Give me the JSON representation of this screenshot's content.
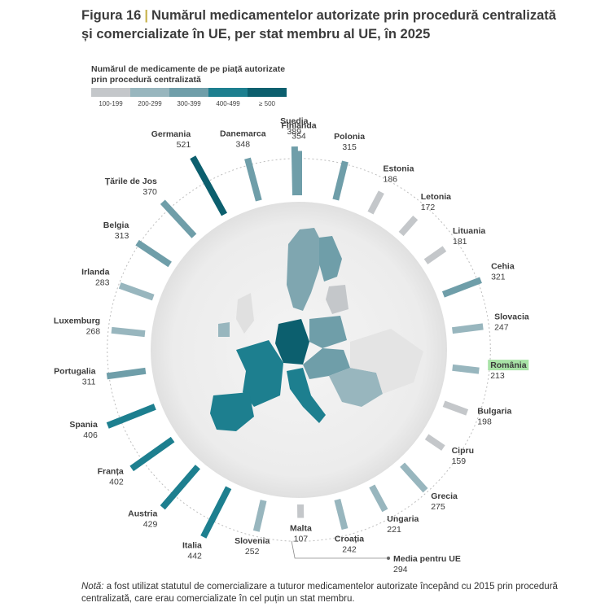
{
  "header": {
    "figure_label": "Figura 16",
    "separator": "|",
    "title_line1": "Numărul medicamentelor autorizate prin procedură centralizată",
    "title_line2": "și comercializate în UE, per stat membru al UE, în 2025"
  },
  "legend": {
    "title_line1": "Numărul de medicamente de pe piață autorizate",
    "title_line2": "prin procedură centralizată",
    "items": [
      {
        "label": "100-199",
        "color": "#c4c7ca"
      },
      {
        "label": "200-299",
        "color": "#98b6be"
      },
      {
        "label": "300-399",
        "color": "#6f9ea9"
      },
      {
        "label": "400-499",
        "color": "#1d7f8f"
      },
      {
        "label": "≥ 500",
        "color": "#0c5f6e"
      }
    ]
  },
  "chart_data": {
    "type": "radial-bar",
    "unit": "Numărul de medicamente de pe piață autorizate prin procedură centralizată",
    "year": 2025,
    "highlight": "România",
    "average": {
      "label": "Media pentru UE",
      "value": 294
    },
    "categories": [
      "Finlanda",
      "Polonia",
      "Estonia",
      "Letonia",
      "Lituania",
      "Cehia",
      "Slovacia",
      "România",
      "Bulgaria",
      "Cipru",
      "Grecia",
      "Ungaria",
      "Croația",
      "Malta",
      "Slovenia",
      "Italia",
      "Austria",
      "Franța",
      "Spania",
      "Portugalia",
      "Luxemburg",
      "Irlanda",
      "Belgia",
      "Țările de Jos",
      "Germania",
      "Danemarca",
      "Suedia"
    ],
    "values": [
      354,
      315,
      186,
      172,
      181,
      321,
      247,
      213,
      198,
      159,
      275,
      221,
      242,
      107,
      252,
      442,
      429,
      402,
      406,
      311,
      268,
      283,
      313,
      370,
      521,
      348,
      389
    ]
  },
  "note": {
    "label": "Notă:",
    "text": " a fost utilizat statutul de comercializare a tuturor medicamentelor autorizate începând cu 2015 prin procedură centralizată, care erau comercializate în cel puțin un stat membru."
  }
}
